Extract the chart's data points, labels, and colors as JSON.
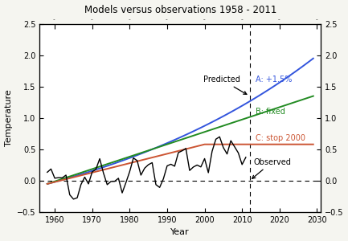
{
  "title": "Models versus observations 1958 - 2011",
  "xlabel": "Year",
  "ylabel": "Temperature",
  "xlim": [
    1956,
    2031
  ],
  "ylim": [
    -0.5,
    2.5
  ],
  "xticks": [
    1960,
    1970,
    1980,
    1990,
    2000,
    2010,
    2020,
    2030
  ],
  "yticks": [
    -0.5,
    0.0,
    0.5,
    1.0,
    1.5,
    2.0,
    2.5
  ],
  "obs_start_year": 1958,
  "obs_end_year": 2011,
  "model_start_year": 1958,
  "model_end_year": 2029,
  "dashed_vline_x": 2012,
  "label_A": "A: +1.5%",
  "label_B": "B: fixed",
  "label_C": "C: stop 2000",
  "label_predicted": "Predicted",
  "label_observed": "Observed",
  "color_A": "#3355dd",
  "color_B": "#228B22",
  "color_C": "#cc5533",
  "color_obs": "#000000",
  "background_color": "#ffffff",
  "figure_facecolor": "#f5f5f0"
}
